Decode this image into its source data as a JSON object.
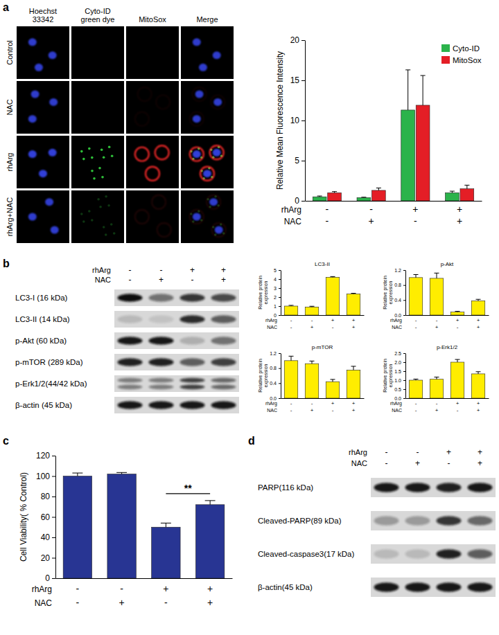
{
  "panel_labels": [
    "a",
    "b",
    "c",
    "d"
  ],
  "micrograph": {
    "column_titles": [
      [
        "Hoechst",
        "33342"
      ],
      [
        "Cyto-ID",
        "green dye"
      ],
      [
        "MitoSox"
      ],
      [
        "Merge"
      ]
    ],
    "row_labels": [
      "Control",
      "NAC",
      "rhArg",
      "rhArg+NAC"
    ],
    "channel_colors": [
      "#3a4cff",
      "#33d43f",
      "#ff2b2b"
    ],
    "intensity": [
      [
        0.8,
        0.0,
        0.0
      ],
      [
        0.8,
        0.0,
        0.05
      ],
      [
        0.85,
        0.9,
        0.9
      ],
      [
        0.8,
        0.25,
        0.1
      ]
    ]
  },
  "blots": [
    {
      "header": [
        {
          "name": "rhArg",
          "signs": [
            "-",
            "-",
            "+",
            "+"
          ]
        },
        {
          "name": "NAC",
          "signs": [
            "-",
            "+",
            "-",
            "+"
          ]
        }
      ],
      "rows": [
        {
          "label": "LC3-I (16 kDa)",
          "intensity": [
            1.0,
            0.5,
            0.8,
            0.7
          ],
          "doublet": false
        },
        {
          "label": "LC3-II (14 kDa)",
          "intensity": [
            0.15,
            0.1,
            0.85,
            0.6
          ],
          "doublet": false
        },
        {
          "label": "p-Akt (60 kDa)",
          "intensity": [
            0.95,
            0.95,
            0.2,
            0.5
          ],
          "doublet": false
        },
        {
          "label": "p-mTOR (289 kDa)",
          "intensity": [
            0.9,
            0.9,
            0.6,
            0.75
          ],
          "doublet": false
        },
        {
          "label": "p-Erk1/2(44/42 kDa)",
          "intensity": [
            0.45,
            0.45,
            0.75,
            0.55
          ],
          "doublet": true
        },
        {
          "label": "β-actin (45 kDa)",
          "intensity": [
            0.95,
            0.95,
            0.95,
            0.95
          ],
          "doublet": false
        }
      ]
    },
    {
      "header": [
        {
          "name": "rhArg",
          "signs": [
            "-",
            "-",
            "+",
            "+"
          ]
        },
        {
          "name": "NAC",
          "signs": [
            "-",
            "+",
            "-",
            "+"
          ]
        }
      ],
      "rows": [
        {
          "label": "PARP(116 kDa)",
          "intensity": [
            0.95,
            0.95,
            0.9,
            0.95
          ],
          "doublet": false
        },
        {
          "label": "Cleaved-PARP(89 kDa)",
          "intensity": [
            0.3,
            0.3,
            0.8,
            0.55
          ],
          "doublet": false
        },
        {
          "label": "Cleaved-caspase3(17 kDa)",
          "intensity": [
            0.15,
            0.15,
            0.9,
            0.6
          ],
          "doublet": false
        },
        {
          "label": "β-actin(45 kDa)",
          "intensity": [
            0.95,
            0.95,
            0.95,
            0.95
          ],
          "doublet": false
        }
      ]
    }
  ],
  "chart_data": [
    {
      "type": "bar",
      "y_label": "Relative Mean Fluorescence Intensity",
      "ylim": [
        0,
        20
      ],
      "yticks": [
        0,
        5,
        10,
        15,
        20
      ],
      "legend": "top-right",
      "treatment_rows": [
        {
          "name": "rhArg",
          "signs": [
            "-",
            "-",
            "+",
            "+"
          ]
        },
        {
          "name": "NAC",
          "signs": [
            "-",
            "+",
            "-",
            "+"
          ]
        }
      ],
      "series": [
        {
          "name": "Cyto-ID",
          "color": "#2bb34b",
          "values": [
            0.5,
            0.4,
            11.3,
            1.0
          ],
          "errors": [
            0.1,
            0.05,
            5.0,
            0.2
          ]
        },
        {
          "name": "MitoSox",
          "color": "#e41e26",
          "values": [
            1.0,
            1.3,
            11.9,
            1.5
          ],
          "errors": [
            0.15,
            0.3,
            3.7,
            0.45
          ]
        }
      ]
    },
    {
      "type": "bar",
      "title": "LC3-II",
      "y_label": "Relative protein expression",
      "ylim": [
        0,
        5
      ],
      "yticks": [
        0,
        1,
        2,
        3,
        4,
        5
      ],
      "color": "#ffed00",
      "treatment_rows": [
        {
          "name": "rhArg",
          "signs": [
            "-",
            "-",
            "+",
            "+"
          ]
        },
        {
          "name": "NAC",
          "signs": [
            "-",
            "+",
            "-",
            "+"
          ]
        }
      ],
      "values": [
        1.0,
        0.9,
        4.2,
        2.35
      ],
      "errors": [
        0.08,
        0.08,
        0.08,
        0.07
      ]
    },
    {
      "type": "bar",
      "title": "p-Akt",
      "y_label": "Relative protein expression",
      "ylim": [
        0,
        1.2
      ],
      "yticks": [
        {
          "value": 0,
          "label": "0.0"
        },
        0.4,
        0.8,
        1.2
      ],
      "color": "#ffed00",
      "treatment_rows": [
        {
          "name": "rhArg",
          "signs": [
            "-",
            "-",
            "+",
            "+"
          ]
        },
        {
          "name": "NAC",
          "signs": [
            "-",
            "+",
            "-",
            "+"
          ]
        }
      ],
      "values": [
        1.0,
        0.98,
        0.08,
        0.38
      ],
      "errors": [
        0.08,
        0.14,
        0.02,
        0.04
      ]
    },
    {
      "type": "bar",
      "title": "p-mTOR",
      "y_label": "Relative protein expression",
      "ylim": [
        0,
        1.2
      ],
      "yticks": [
        {
          "value": 0,
          "label": "0.0"
        },
        0.4,
        0.8,
        1.2
      ],
      "color": "#ffed00",
      "treatment_rows": [
        {
          "name": "rhArg",
          "signs": [
            "-",
            "-",
            "+",
            "+"
          ]
        },
        {
          "name": "NAC",
          "signs": [
            "-",
            "+",
            "-",
            "+"
          ]
        }
      ],
      "values": [
        1.0,
        0.92,
        0.44,
        0.75
      ],
      "errors": [
        0.12,
        0.07,
        0.06,
        0.1
      ]
    },
    {
      "type": "bar",
      "title": "p-Erk1/2",
      "y_label": "Relative protein expression",
      "ylim": [
        0,
        2.5
      ],
      "yticks": [
        {
          "value": 0,
          "label": "0.0"
        },
        0.5,
        {
          "value": 1,
          "label": "1.0"
        },
        1.5,
        {
          "value": 2,
          "label": "2.0"
        },
        2.5
      ],
      "color": "#ffed00",
      "treatment_rows": [
        {
          "name": "rhArg",
          "signs": [
            "-",
            "-",
            "+",
            "+"
          ]
        },
        {
          "name": "NAC",
          "signs": [
            "-",
            "+",
            "-",
            "+"
          ]
        }
      ],
      "values": [
        1.0,
        1.05,
        2.0,
        1.35
      ],
      "errors": [
        0.06,
        0.12,
        0.15,
        0.12
      ]
    },
    {
      "type": "bar",
      "y_label": "Cell Viability( % Control)",
      "ylim": [
        0,
        120
      ],
      "yticks": [
        0,
        20,
        40,
        60,
        80,
        100,
        120
      ],
      "color": "#283593",
      "treatment_rows": [
        {
          "name": "rhArg",
          "signs": [
            "-",
            "-",
            "+",
            "+"
          ]
        },
        {
          "name": "NAC",
          "signs": [
            "-",
            "+",
            "-",
            "+"
          ]
        }
      ],
      "values": [
        100,
        102,
        50,
        72
      ],
      "errors": [
        3,
        1.5,
        4,
        4
      ],
      "annotations": [
        {
          "text": "**",
          "between": [
            2,
            3
          ]
        }
      ]
    }
  ]
}
